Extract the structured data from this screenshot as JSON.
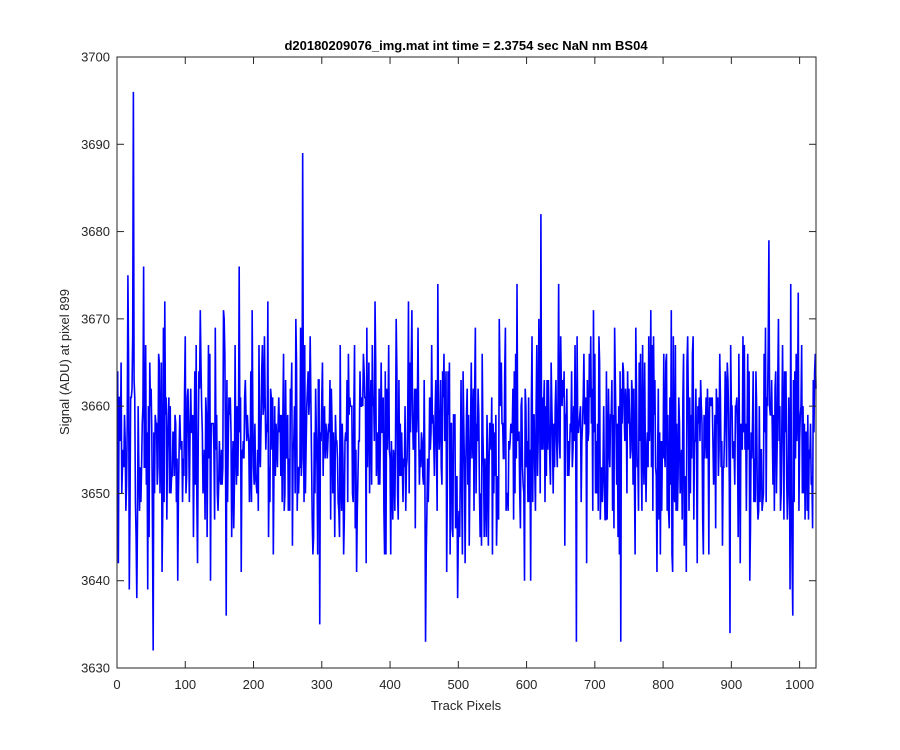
{
  "chart_data": {
    "type": "line",
    "title": "d20180209076_img.mat int time = 2.3754 sec  NaN nm BS04",
    "xlabel": "Track Pixels",
    "ylabel": "Signal (ADU) at pixel 899",
    "xlim": [
      0,
      1024
    ],
    "ylim": [
      3630,
      3700
    ],
    "xticks": [
      0,
      100,
      200,
      300,
      400,
      500,
      600,
      700,
      800,
      900,
      1000
    ],
    "yticks": [
      3630,
      3640,
      3650,
      3660,
      3670,
      3680,
      3690,
      3700
    ],
    "grid": false,
    "line_color": "#0000ff",
    "series": [
      {
        "x_start": 1,
        "x_step": 1,
        "n_points": 1024,
        "y_mean": 3656.5,
        "y_std": 7,
        "peaks": [
          {
            "x": 24,
            "y": 3696
          },
          {
            "x": 53,
            "y": 3632
          },
          {
            "x": 160,
            "y": 3636
          },
          {
            "x": 272,
            "y": 3689
          },
          {
            "x": 297,
            "y": 3635
          },
          {
            "x": 452,
            "y": 3633
          },
          {
            "x": 621,
            "y": 3682
          },
          {
            "x": 673,
            "y": 3633
          },
          {
            "x": 738,
            "y": 3633
          },
          {
            "x": 898,
            "y": 3634
          },
          {
            "x": 955,
            "y": 3679
          },
          {
            "x": 990,
            "y": 3636
          }
        ]
      }
    ]
  }
}
